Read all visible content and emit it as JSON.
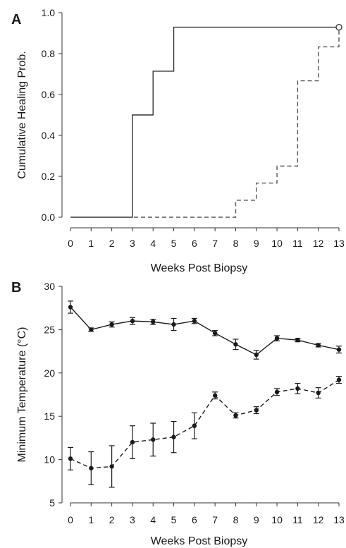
{
  "chart_data": [
    {
      "type": "line",
      "step": true,
      "panel_label": "A",
      "xlabel": "Weeks Post Biopsy",
      "ylabel": "Cumulative Healing Prob.",
      "xlim": [
        0,
        13
      ],
      "ylim": [
        0,
        1.0
      ],
      "x_ticks": [
        "0",
        "1",
        "2",
        "3",
        "4",
        "5",
        "6",
        "7",
        "8",
        "9",
        "10",
        "11",
        "12",
        "13"
      ],
      "y_ticks": [
        "0.0",
        "0.2",
        "0.4",
        "0.6",
        "0.8",
        "1.0"
      ],
      "grid": false,
      "legend": "none",
      "series": [
        {
          "line_style": "solid",
          "color": "#333333",
          "points": [
            [
              0,
              0.0
            ],
            [
              3,
              0.5
            ],
            [
              4,
              0.714
            ],
            [
              5,
              0.929
            ],
            [
              13,
              0.929
            ]
          ],
          "censored": [
            [
              13,
              0.929
            ]
          ]
        },
        {
          "line_style": "dashed",
          "color": "#555555",
          "points": [
            [
              0,
              0.0
            ],
            [
              8,
              0.083
            ],
            [
              9,
              0.167
            ],
            [
              10,
              0.25
            ],
            [
              11,
              0.667
            ],
            [
              12,
              0.833
            ],
            [
              13,
              0.929
            ]
          ],
          "censored": []
        }
      ]
    },
    {
      "type": "line",
      "panel_label": "B",
      "xlabel": "Weeks Post Biopsy",
      "ylabel": "Minimum Temperature (°C)",
      "xlim": [
        0,
        13
      ],
      "ylim": [
        5,
        30
      ],
      "x_ticks": [
        "0",
        "1",
        "2",
        "3",
        "4",
        "5",
        "6",
        "7",
        "8",
        "9",
        "10",
        "11",
        "12",
        "13"
      ],
      "y_ticks": [
        "5",
        "10",
        "15",
        "20",
        "25",
        "30"
      ],
      "grid": false,
      "legend": "none",
      "error_bars": true,
      "series": [
        {
          "line_style": "solid",
          "color": "#1a1a1a",
          "x": [
            0,
            1,
            2,
            3,
            4,
            5,
            6,
            7,
            8,
            9,
            10,
            11,
            12,
            13
          ],
          "values": [
            27.6,
            25.0,
            25.6,
            26.0,
            25.9,
            25.6,
            26.0,
            24.6,
            23.3,
            22.1,
            24.0,
            23.8,
            23.2,
            22.7
          ],
          "errors": [
            0.7,
            0.2,
            0.3,
            0.4,
            0.3,
            0.7,
            0.3,
            0.3,
            0.6,
            0.5,
            0.3,
            0.2,
            0.2,
            0.4
          ]
        },
        {
          "line_style": "dashed",
          "color": "#1a1a1a",
          "x": [
            0,
            1,
            2,
            3,
            4,
            5,
            6,
            7,
            8,
            9,
            10,
            11,
            12,
            13
          ],
          "values": [
            10.1,
            9.0,
            9.2,
            12.0,
            12.3,
            12.6,
            13.9,
            17.4,
            15.1,
            15.7,
            17.8,
            18.2,
            17.7,
            19.2
          ],
          "errors": [
            1.3,
            1.9,
            2.4,
            1.9,
            1.9,
            1.8,
            1.5,
            0.4,
            0.3,
            0.4,
            0.4,
            0.6,
            0.6,
            0.4
          ]
        }
      ]
    }
  ]
}
